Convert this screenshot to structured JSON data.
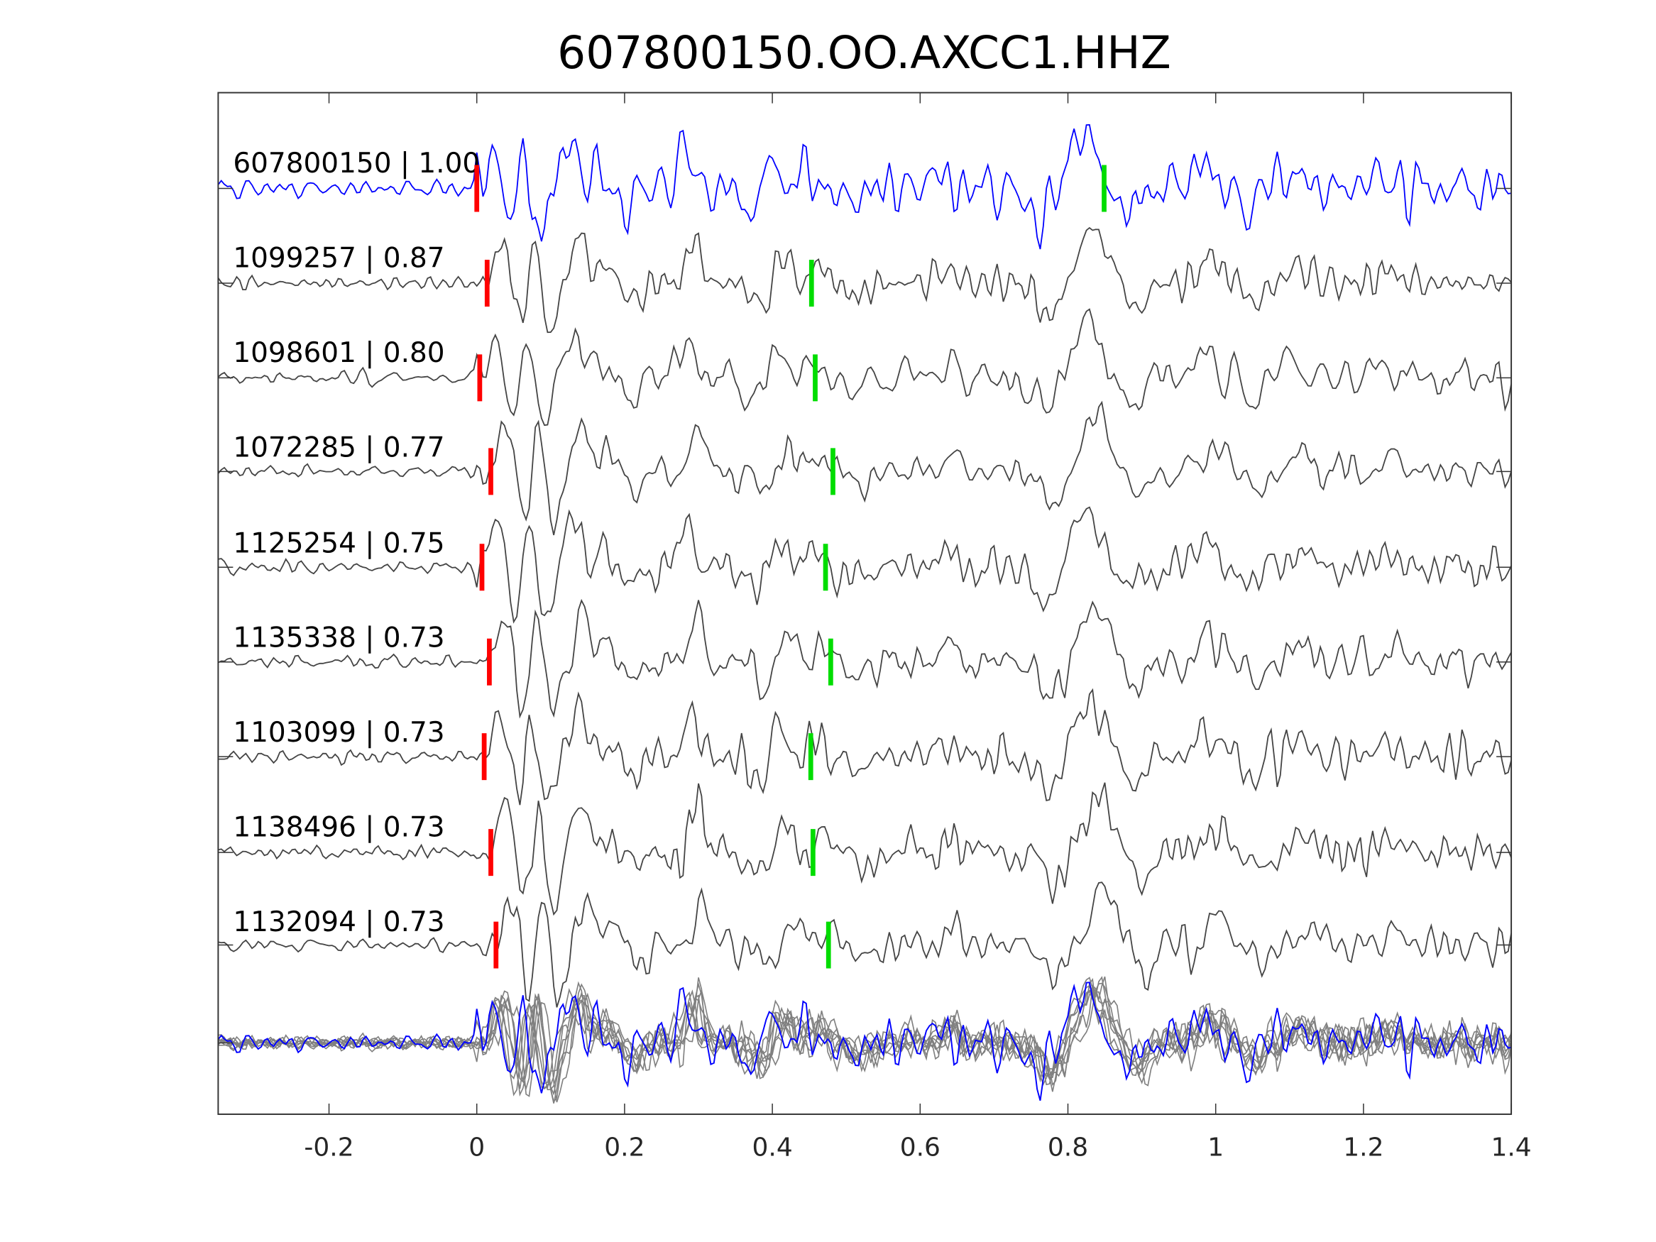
{
  "chart_data": {
    "type": "line",
    "title": "607800150.OO.AXCC1.HHZ",
    "xlabel": "",
    "ylabel": "",
    "xlim": [
      -0.35,
      1.4
    ],
    "xticks": [
      -0.2,
      0,
      0.2,
      0.4,
      0.6,
      0.8,
      1,
      1.2,
      1.4
    ],
    "xtick_labels": [
      "-0.2",
      "0",
      "0.2",
      "0.4",
      "0.6",
      "0.8",
      "1",
      "1.2",
      "1.4"
    ],
    "grid": false,
    "traces": [
      {
        "label": "607800150 | 1.00",
        "id": "607800150",
        "cc": 1.0,
        "p_pick": 0.0,
        "s_pick": 0.849,
        "color": "#0000ff"
      },
      {
        "label": "1099257 | 0.87",
        "id": "1099257",
        "cc": 0.87,
        "p_pick": 0.014,
        "s_pick": 0.453,
        "color": "#444444"
      },
      {
        "label": "1098601 | 0.80",
        "id": "1098601",
        "cc": 0.8,
        "p_pick": 0.004,
        "s_pick": 0.458,
        "color": "#444444"
      },
      {
        "label": "1072285 | 0.77",
        "id": "1072285",
        "cc": 0.77,
        "p_pick": 0.019,
        "s_pick": 0.482,
        "color": "#444444"
      },
      {
        "label": "1125254 | 0.75",
        "id": "1125254",
        "cc": 0.75,
        "p_pick": 0.007,
        "s_pick": 0.472,
        "color": "#444444"
      },
      {
        "label": "1135338 | 0.73",
        "id": "1135338",
        "cc": 0.73,
        "p_pick": 0.017,
        "s_pick": 0.479,
        "color": "#444444"
      },
      {
        "label": "1103099 | 0.73",
        "id": "1103099",
        "cc": 0.73,
        "p_pick": 0.01,
        "s_pick": 0.452,
        "color": "#444444"
      },
      {
        "label": "1138496 | 0.73",
        "id": "1138496",
        "cc": 0.73,
        "p_pick": 0.019,
        "s_pick": 0.455,
        "color": "#444444"
      },
      {
        "label": "1132094 | 0.73",
        "id": "1132094",
        "cc": 0.73,
        "p_pick": 0.026,
        "s_pick": 0.476,
        "color": "#444444"
      }
    ],
    "stack": {
      "description_of_marks": "overlay of all traces",
      "template_color": "#0000ff",
      "others_color": "#808080"
    },
    "colors": {
      "p_pick": "#ff0000",
      "s_pick": "#00dd00",
      "axes": "#333333"
    }
  }
}
